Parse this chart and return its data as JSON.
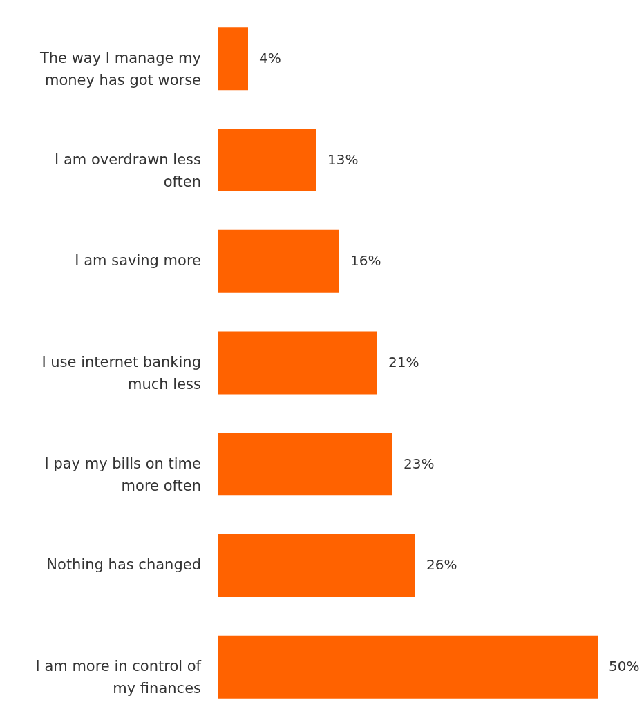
{
  "chart_data": {
    "type": "bar",
    "orientation": "horizontal",
    "categories": [
      "The way I manage my money has got worse",
      "I am overdrawn less often",
      "I am saving more",
      "I use internet banking much less",
      "I pay my bills on time more often",
      "Nothing has changed",
      "I am more in control of my finances"
    ],
    "values": [
      4,
      13,
      16,
      21,
      23,
      26,
      50
    ],
    "color": "#ff6200",
    "data_labels": true,
    "value_labels": [
      "4%",
      "13%",
      "16%",
      "21%",
      "23%",
      "26%",
      "50%"
    ]
  }
}
